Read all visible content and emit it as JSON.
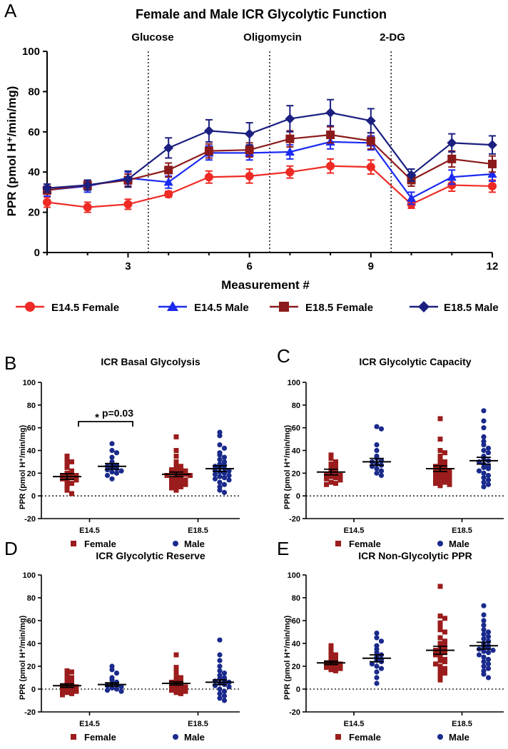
{
  "colors": {
    "e145_female": "#ee2a24",
    "e145_male": "#1c2bf0",
    "e185_female": "#8b1a1a",
    "e185_male": "#1a1f80",
    "scatter_female": "#9b1c1c",
    "scatter_male": "#1a2a8c"
  },
  "chart_data": [
    {
      "panel": "A",
      "type": "line",
      "title": "Female and Male ICR Glycolytic Function",
      "xlabel": "Measurement #",
      "ylabel": "PPR (pmol H⁺/min/mg)",
      "xlim": [
        1,
        12
      ],
      "ylim": [
        0,
        100
      ],
      "xticks": [
        3,
        6,
        9,
        12
      ],
      "yticks": [
        0,
        20,
        40,
        60,
        80,
        100
      ],
      "x": [
        1,
        2,
        3,
        4,
        5,
        6,
        7,
        8,
        9,
        10,
        11,
        12
      ],
      "injections": [
        {
          "label": "Glucose",
          "x": 3.5
        },
        {
          "label": "Oligomycin",
          "x": 6.5
        },
        {
          "label": "2-DG",
          "x": 9.5
        }
      ],
      "series": [
        {
          "name": "E14.5 Female",
          "marker": "circle",
          "color_key": "e145_female",
          "values": [
            25,
            22.5,
            24,
            29,
            37.5,
            38,
            40,
            43,
            42.5,
            24,
            33.5,
            33
          ],
          "errors": [
            2.5,
            2.5,
            2.5,
            1.5,
            3,
            3.5,
            3,
            3.5,
            3.5,
            2,
            3,
            3
          ]
        },
        {
          "name": "E14.5 Male",
          "marker": "triangle",
          "color_key": "e145_male",
          "values": [
            31,
            33,
            37,
            35,
            49.5,
            49.5,
            50,
            55,
            54.5,
            27,
            37.5,
            39
          ],
          "errors": [
            3,
            3,
            3,
            3,
            3.5,
            3.5,
            3.5,
            3.5,
            3.5,
            3,
            3.5,
            3.5
          ]
        },
        {
          "name": "E18.5 Female",
          "marker": "square",
          "color_key": "e185_female",
          "values": [
            31,
            33.5,
            36,
            41,
            50.5,
            51,
            56.5,
            58.5,
            55.5,
            36,
            46.5,
            44
          ],
          "errors": [
            2,
            2.5,
            3,
            3.5,
            3.5,
            3.5,
            4,
            4,
            4,
            3,
            4,
            4
          ]
        },
        {
          "name": "E18.5 Male",
          "marker": "diamond",
          "color_key": "e185_male",
          "values": [
            32,
            33.5,
            36.5,
            52,
            60.5,
            59,
            66.5,
            69.5,
            65.5,
            38.5,
            54.5,
            53.5
          ],
          "errors": [
            2,
            2.5,
            4,
            5,
            5.5,
            5.5,
            6.5,
            6.5,
            6,
            3,
            4.5,
            4.5
          ]
        }
      ]
    },
    {
      "panel": "B",
      "type": "scatter",
      "title": "ICR Basal Glycolysis",
      "ylabel": "PPR (pmol H⁺/min/mg)",
      "ylim": [
        -20,
        100
      ],
      "yticks": [
        -20,
        0,
        20,
        40,
        60,
        80,
        100
      ],
      "categories": [
        "E14.5",
        "E18.5"
      ],
      "annotation": {
        "star": "*",
        "text": "p=0.03"
      },
      "legend": [
        "Female",
        "Male"
      ],
      "groups": [
        {
          "category": "E14.5",
          "sex": "Female",
          "mean": 17,
          "sem": 2.5,
          "values": [
            35,
            31,
            30,
            28,
            25,
            22,
            20,
            19,
            18,
            18,
            17,
            16,
            15,
            14,
            13,
            11,
            9,
            5,
            2
          ]
        },
        {
          "category": "E14.5",
          "sex": "Male",
          "mean": 26,
          "sem": 2.5,
          "values": [
            46,
            40,
            38,
            34,
            30,
            28,
            27,
            26,
            25,
            24,
            23,
            22,
            21,
            20,
            18,
            15
          ]
        },
        {
          "category": "E18.5",
          "sex": "Female",
          "mean": 19,
          "sem": 2,
          "values": [
            52,
            40,
            35,
            30,
            28,
            26,
            25,
            24,
            23,
            22,
            21,
            20,
            20,
            19,
            18,
            18,
            17,
            16,
            15,
            14,
            13,
            12,
            11,
            10,
            9,
            8,
            7,
            5
          ]
        },
        {
          "category": "E18.5",
          "sex": "Male",
          "mean": 24,
          "sem": 2.5,
          "values": [
            56,
            53,
            45,
            42,
            38,
            36,
            34,
            32,
            30,
            28,
            27,
            26,
            25,
            24,
            23,
            22,
            21,
            20,
            19,
            18,
            17,
            16,
            15,
            14,
            12,
            10,
            8,
            5,
            3
          ]
        }
      ]
    },
    {
      "panel": "C",
      "type": "scatter",
      "title": "ICR Glycolytic Capacity",
      "ylabel": "PPR (pmol H⁺/min/mg)",
      "ylim": [
        -20,
        100
      ],
      "yticks": [
        -20,
        0,
        20,
        40,
        60,
        80,
        100
      ],
      "categories": [
        "E14.5",
        "E18.5"
      ],
      "legend": [
        "Female",
        "Male"
      ],
      "groups": [
        {
          "category": "E14.5",
          "sex": "Female",
          "mean": 21,
          "sem": 2.5,
          "values": [
            36,
            33,
            30,
            28,
            26,
            24,
            22,
            21,
            20,
            19,
            18,
            17,
            16,
            15,
            14,
            12,
            11,
            10
          ]
        },
        {
          "category": "E14.5",
          "sex": "Male",
          "mean": 30,
          "sem": 3,
          "values": [
            61,
            59,
            45,
            40,
            35,
            33,
            31,
            30,
            28,
            27,
            26,
            24,
            22,
            20,
            18
          ]
        },
        {
          "category": "E18.5",
          "sex": "Female",
          "mean": 24,
          "sem": 2.5,
          "values": [
            68,
            50,
            40,
            38,
            35,
            32,
            30,
            28,
            27,
            26,
            25,
            24,
            23,
            22,
            21,
            20,
            19,
            18,
            17,
            16,
            15,
            14,
            13,
            12,
            11,
            10,
            9
          ]
        },
        {
          "category": "E18.5",
          "sex": "Male",
          "mean": 31,
          "sem": 3,
          "values": [
            75,
            66,
            60,
            52,
            48,
            45,
            42,
            40,
            38,
            35,
            33,
            31,
            30,
            28,
            26,
            25,
            24,
            22,
            20,
            18,
            16,
            14,
            12,
            10,
            8
          ]
        }
      ]
    },
    {
      "panel": "D",
      "type": "scatter",
      "title": "ICR Glycolytic Reserve",
      "ylabel": "PPR (pmol H⁺/min/mg)",
      "ylim": [
        -20,
        100
      ],
      "yticks": [
        -20,
        0,
        20,
        40,
        60,
        80,
        100
      ],
      "categories": [
        "E14.5",
        "E18.5"
      ],
      "legend": [
        "Female",
        "Male"
      ],
      "groups": [
        {
          "category": "E14.5",
          "sex": "Female",
          "mean": 3,
          "sem": 1.5,
          "values": [
            16,
            15,
            12,
            10,
            8,
            6,
            5,
            4,
            3,
            2,
            1,
            0,
            -1,
            -2,
            -3,
            -4,
            -5
          ]
        },
        {
          "category": "E14.5",
          "sex": "Male",
          "mean": 4,
          "sem": 1.5,
          "values": [
            20,
            17,
            14,
            10,
            8,
            6,
            5,
            4,
            3,
            2,
            1,
            0,
            -1,
            -2
          ]
        },
        {
          "category": "E18.5",
          "sex": "Female",
          "mean": 5,
          "sem": 1.5,
          "values": [
            30,
            19,
            15,
            12,
            10,
            8,
            7,
            6,
            5,
            4,
            3,
            2,
            1,
            0,
            -1,
            -2,
            -3,
            -4
          ]
        },
        {
          "category": "E18.5",
          "sex": "Male",
          "mean": 6,
          "sem": 2,
          "values": [
            43,
            30,
            25,
            20,
            16,
            14,
            12,
            10,
            9,
            8,
            7,
            6,
            5,
            4,
            3,
            2,
            0,
            -2,
            -4,
            -6,
            -8,
            -10
          ]
        }
      ]
    },
    {
      "panel": "E",
      "type": "scatter",
      "title": "ICR Non-Glycolytic PPR",
      "ylabel": "PPR (pmol H⁺/min/mg)",
      "ylim": [
        -20,
        100
      ],
      "yticks": [
        -20,
        0,
        20,
        40,
        60,
        80,
        100
      ],
      "categories": [
        "E14.5",
        "E18.5"
      ],
      "legend": [
        "Female",
        "Male"
      ],
      "groups": [
        {
          "category": "E14.5",
          "sex": "Female",
          "mean": 23,
          "sem": 1.5,
          "values": [
            38,
            35,
            32,
            30,
            28,
            26,
            25,
            24,
            23,
            22,
            21,
            20,
            19,
            18,
            17,
            16
          ]
        },
        {
          "category": "E14.5",
          "sex": "Male",
          "mean": 27,
          "sem": 3,
          "values": [
            49,
            45,
            42,
            38,
            35,
            32,
            30,
            28,
            26,
            25,
            24,
            22,
            20,
            18,
            15,
            10,
            5
          ]
        },
        {
          "category": "E18.5",
          "sex": "Female",
          "mean": 34,
          "sem": 3.5,
          "values": [
            90,
            64,
            62,
            58,
            55,
            52,
            50,
            45,
            42,
            40,
            38,
            36,
            35,
            34,
            33,
            32,
            30,
            28,
            26,
            25,
            24,
            22,
            20,
            18,
            16,
            14,
            12,
            8
          ]
        },
        {
          "category": "E18.5",
          "sex": "Male",
          "mean": 38,
          "sem": 3,
          "values": [
            73,
            65,
            60,
            56,
            52,
            50,
            48,
            46,
            44,
            42,
            40,
            38,
            37,
            36,
            35,
            34,
            33,
            32,
            30,
            28,
            26,
            24,
            22,
            20,
            18,
            16,
            13,
            10
          ]
        }
      ]
    }
  ]
}
